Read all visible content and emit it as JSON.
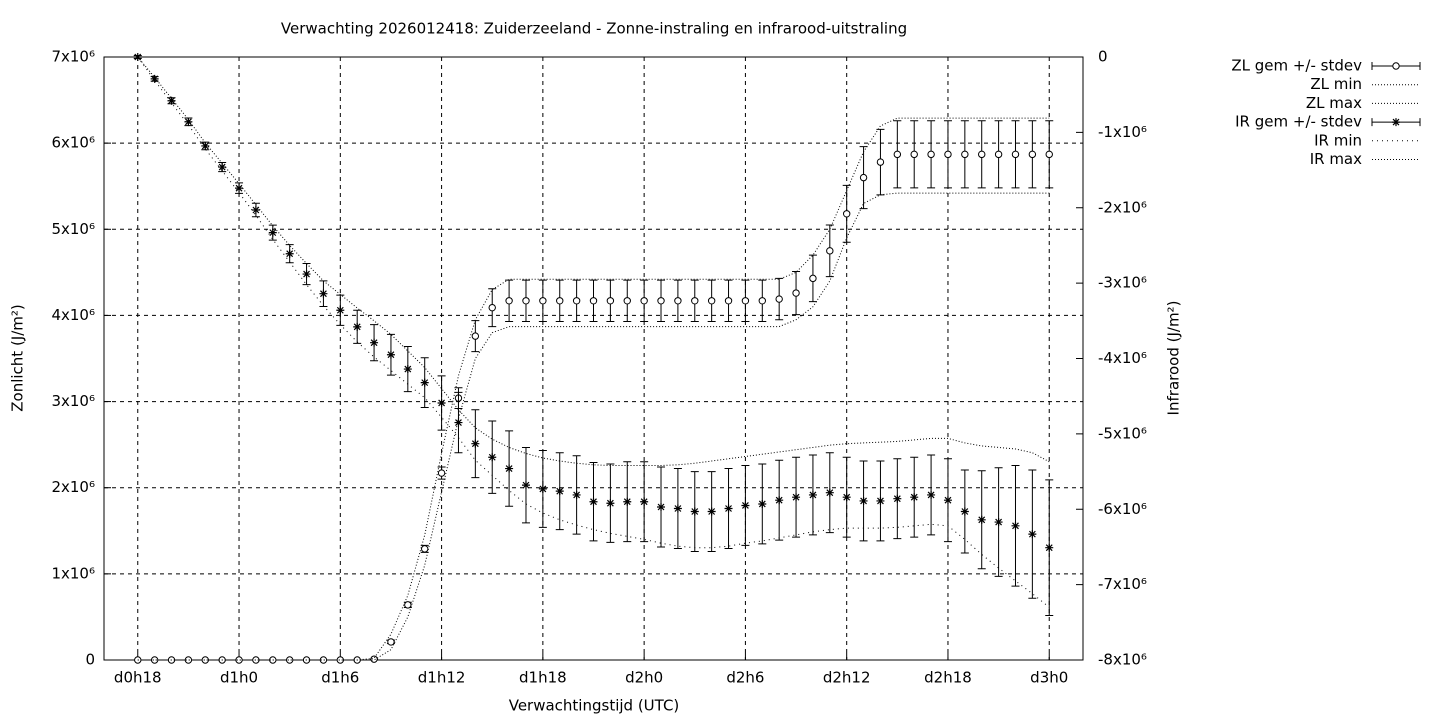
{
  "chart_data": {
    "type": "line",
    "title": "Verwachting 2026012418: Zuiderzeeland - Zonne-instraling en infrarood-uitstraling",
    "x_label": "Verwachtingstijd (UTC)",
    "y_label": "Zonlicht (J/m²)",
    "y2_label": "Infrarood (J/m²)",
    "grid": true,
    "legend": "top right outside",
    "xlim": [
      16,
      74
    ],
    "xticks": [
      {
        "value": 18,
        "label": "d0h18"
      },
      {
        "value": 24,
        "label": "d1h0"
      },
      {
        "value": 30,
        "label": "d1h6"
      },
      {
        "value": 36,
        "label": "d1h12"
      },
      {
        "value": 42,
        "label": "d1h18"
      },
      {
        "value": 48,
        "label": "d2h0"
      },
      {
        "value": 54,
        "label": "d2h6"
      },
      {
        "value": 60,
        "label": "d2h12"
      },
      {
        "value": 66,
        "label": "d2h18"
      },
      {
        "value": 72,
        "label": "d3h0"
      }
    ],
    "ylim": [
      0,
      7000000
    ],
    "yticks": [
      0,
      {
        "value": 1000000,
        "label": "1x10⁶"
      },
      {
        "value": 2000000,
        "label": "2x10⁶"
      },
      {
        "value": 3000000,
        "label": "3x10⁶"
      },
      {
        "value": 4000000,
        "label": "4x10⁶"
      },
      {
        "value": 5000000,
        "label": "5x10⁶"
      },
      {
        "value": 6000000,
        "label": "6x10⁶"
      },
      {
        "value": 7000000,
        "label": "7x10⁶"
      }
    ],
    "y2lim": [
      -8000000,
      0
    ],
    "y2ticks": [
      0,
      {
        "value": -1000000,
        "label": "-1x10⁶"
      },
      {
        "value": -2000000,
        "label": "-2x10⁶"
      },
      {
        "value": -3000000,
        "label": "-3x10⁶"
      },
      {
        "value": -4000000,
        "label": "-4x10⁶"
      },
      {
        "value": -5000000,
        "label": "-5x10⁶"
      },
      {
        "value": -6000000,
        "label": "-6x10⁶"
      },
      {
        "value": -7000000,
        "label": "-7x10⁶"
      },
      {
        "value": -8000000,
        "label": "-8x10⁶"
      }
    ],
    "x": [
      18,
      19,
      20,
      21,
      22,
      23,
      24,
      25,
      26,
      27,
      28,
      29,
      30,
      31,
      32,
      33,
      34,
      35,
      36,
      37,
      38,
      39,
      40,
      41,
      42,
      43,
      44,
      45,
      46,
      47,
      48,
      49,
      50,
      51,
      52,
      53,
      54,
      55,
      56,
      57,
      58,
      59,
      60,
      61,
      62,
      63,
      64,
      65,
      66,
      67,
      68,
      69,
      70,
      71,
      72
    ],
    "series": [
      {
        "name": "ZL gem +/- stdev",
        "color": "#000000",
        "style": "errorbars",
        "marker": "circle",
        "axis": "y",
        "values": [
          0,
          0,
          0,
          0,
          0,
          0,
          0,
          0,
          0,
          0,
          0,
          0,
          0,
          0,
          10000,
          210000,
          640000,
          1290000,
          2170000,
          3040000,
          3760000,
          4090000,
          4170000,
          4170000,
          4170000,
          4170000,
          4170000,
          4170000,
          4170000,
          4170000,
          4170000,
          4170000,
          4170000,
          4170000,
          4170000,
          4170000,
          4170000,
          4170000,
          4190000,
          4260000,
          4430000,
          4750000,
          5180000,
          5600000,
          5780000,
          5870000,
          5870000,
          5870000,
          5870000,
          5870000,
          5870000,
          5870000,
          5870000,
          5870000,
          5870000
        ],
        "errors": [
          0,
          0,
          0,
          0,
          0,
          0,
          0,
          0,
          0,
          0,
          0,
          0,
          0,
          0,
          0,
          20000,
          30000,
          40000,
          70000,
          120000,
          180000,
          220000,
          240000,
          240000,
          240000,
          240000,
          240000,
          240000,
          240000,
          240000,
          240000,
          240000,
          240000,
          240000,
          240000,
          240000,
          240000,
          240000,
          240000,
          250000,
          270000,
          300000,
          330000,
          360000,
          380000,
          390000,
          390000,
          390000,
          390000,
          390000,
          390000,
          390000,
          390000,
          390000,
          390000
        ]
      },
      {
        "name": "ZL min",
        "color": "#000000",
        "style": "dotted",
        "dash": "1 2",
        "axis": "y",
        "values": [
          0,
          0,
          0,
          0,
          0,
          0,
          0,
          0,
          0,
          0,
          0,
          0,
          0,
          0,
          0,
          120000,
          500000,
          1100000,
          1950000,
          2800000,
          3500000,
          3800000,
          3870000,
          3870000,
          3870000,
          3870000,
          3870000,
          3870000,
          3870000,
          3870000,
          3870000,
          3870000,
          3870000,
          3870000,
          3870000,
          3870000,
          3870000,
          3870000,
          3870000,
          3950000,
          4100000,
          4400000,
          4900000,
          5300000,
          5400000,
          5420000,
          5420000,
          5420000,
          5420000,
          5420000,
          5420000,
          5420000,
          5420000,
          5420000,
          5420000
        ]
      },
      {
        "name": "ZL max",
        "color": "#000000",
        "style": "dotted",
        "dash": "1 2",
        "axis": "y",
        "values": [
          0,
          0,
          0,
          0,
          0,
          0,
          0,
          0,
          0,
          0,
          0,
          0,
          0,
          0,
          20000,
          300000,
          750000,
          1450000,
          2400000,
          3300000,
          3950000,
          4300000,
          4420000,
          4420000,
          4420000,
          4420000,
          4420000,
          4420000,
          4420000,
          4420000,
          4420000,
          4420000,
          4420000,
          4420000,
          4420000,
          4420000,
          4420000,
          4420000,
          4420000,
          4500000,
          4700000,
          5000000,
          5450000,
          5900000,
          6200000,
          6290000,
          6290000,
          6290000,
          6290000,
          6290000,
          6290000,
          6290000,
          6290000,
          6290000,
          6290000
        ]
      },
      {
        "name": "IR gem +/- stdev",
        "color": "#000000",
        "style": "errorbars",
        "marker": "star",
        "axis": "y2",
        "values": [
          0,
          -290000,
          -580000,
          -860000,
          -1180000,
          -1460000,
          -1740000,
          -2030000,
          -2330000,
          -2610000,
          -2880000,
          -3140000,
          -3360000,
          -3580000,
          -3790000,
          -3950000,
          -4140000,
          -4320000,
          -4590000,
          -4850000,
          -5130000,
          -5310000,
          -5460000,
          -5680000,
          -5730000,
          -5760000,
          -5810000,
          -5900000,
          -5920000,
          -5900000,
          -5900000,
          -5970000,
          -5990000,
          -6030000,
          -6030000,
          -5990000,
          -5950000,
          -5930000,
          -5880000,
          -5840000,
          -5810000,
          -5780000,
          -5840000,
          -5890000,
          -5890000,
          -5860000,
          -5840000,
          -5810000,
          -5880000,
          -6030000,
          -6140000,
          -6170000,
          -6220000,
          -6330000,
          -6510000
        ],
        "errors": [
          20000,
          30000,
          40000,
          50000,
          50000,
          60000,
          70000,
          90000,
          100000,
          120000,
          140000,
          170000,
          200000,
          220000,
          240000,
          270000,
          300000,
          330000,
          360000,
          400000,
          450000,
          480000,
          500000,
          500000,
          510000,
          510000,
          520000,
          520000,
          520000,
          530000,
          530000,
          530000,
          530000,
          530000,
          530000,
          530000,
          530000,
          530000,
          530000,
          530000,
          530000,
          530000,
          530000,
          530000,
          530000,
          530000,
          530000,
          530000,
          550000,
          550000,
          650000,
          720000,
          800000,
          850000,
          900000
        ]
      },
      {
        "name": "IR min",
        "color": "#000000",
        "style": "dotted",
        "dash": "1 4",
        "axis": "y2",
        "values": [
          0,
          -310000,
          -610000,
          -900000,
          -1220000,
          -1510000,
          -1800000,
          -2100000,
          -2420000,
          -2720000,
          -3020000,
          -3300000,
          -3550000,
          -3780000,
          -3980000,
          -4160000,
          -4340000,
          -4520000,
          -4780000,
          -5050000,
          -5350000,
          -5550000,
          -5750000,
          -5930000,
          -6050000,
          -6140000,
          -6210000,
          -6270000,
          -6320000,
          -6360000,
          -6400000,
          -6450000,
          -6490000,
          -6510000,
          -6510000,
          -6490000,
          -6450000,
          -6420000,
          -6380000,
          -6340000,
          -6300000,
          -6270000,
          -6250000,
          -6250000,
          -6250000,
          -6240000,
          -6220000,
          -6200000,
          -6220000,
          -6400000,
          -6600000,
          -6780000,
          -6950000,
          -7120000,
          -7300000
        ]
      },
      {
        "name": "IR max",
        "color": "#000000",
        "style": "dotted",
        "dash": "1 2",
        "axis": "y2",
        "values": [
          0,
          -270000,
          -550000,
          -830000,
          -1140000,
          -1410000,
          -1680000,
          -1960000,
          -2240000,
          -2500000,
          -2740000,
          -2970000,
          -3150000,
          -3330000,
          -3500000,
          -3680000,
          -3900000,
          -4120000,
          -4400000,
          -4680000,
          -4920000,
          -5070000,
          -5180000,
          -5260000,
          -5320000,
          -5360000,
          -5390000,
          -5410000,
          -5420000,
          -5420000,
          -5420000,
          -5420000,
          -5410000,
          -5390000,
          -5360000,
          -5330000,
          -5300000,
          -5270000,
          -5240000,
          -5210000,
          -5180000,
          -5150000,
          -5130000,
          -5120000,
          -5110000,
          -5100000,
          -5080000,
          -5060000,
          -5060000,
          -5120000,
          -5160000,
          -5180000,
          -5200000,
          -5250000,
          -5370000
        ]
      }
    ]
  }
}
